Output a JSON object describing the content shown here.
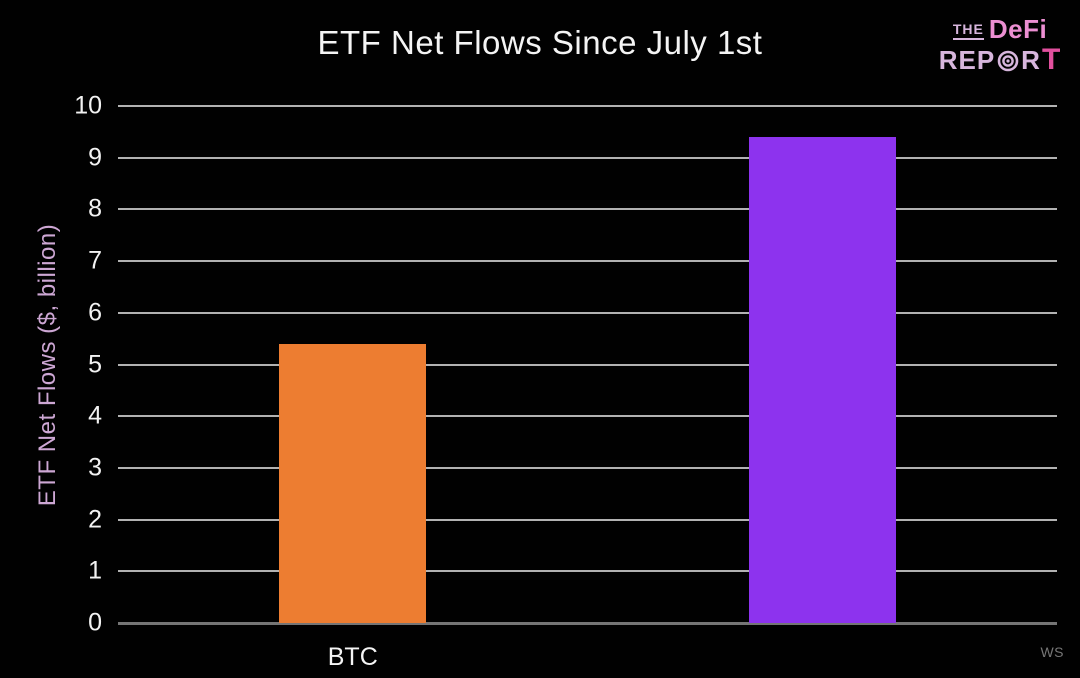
{
  "logo": {
    "line1_the": "THE",
    "line1_defi": "DeFi",
    "line2_rep": "REP",
    "line2_r": "R",
    "line2_t": "T",
    "lavender": "#d7b6dd",
    "pink": "#ec8fd2"
  },
  "watermark": "WS",
  "chart_data": {
    "type": "bar",
    "title": "ETF Net Flows Since July 1st",
    "xlabel": "",
    "ylabel": "ETF Net Flows ($, billion)",
    "categories": [
      "BTC",
      ""
    ],
    "values": [
      5.4,
      9.4
    ],
    "bar_colors": [
      "#ED7D31",
      "#8D33EE"
    ],
    "ylim": [
      0,
      10
    ],
    "yticks": [
      0,
      1,
      2,
      3,
      4,
      5,
      6,
      7,
      8,
      9,
      10
    ],
    "grid": "horizontal",
    "legend": "none",
    "background": "#000000",
    "gridline_color": "#b2b2b2",
    "axis_color": "#757575",
    "tick_label_color": "#f2f2f2",
    "title_color": "#f4f4f4",
    "ylabel_color": "#cda7d4"
  }
}
